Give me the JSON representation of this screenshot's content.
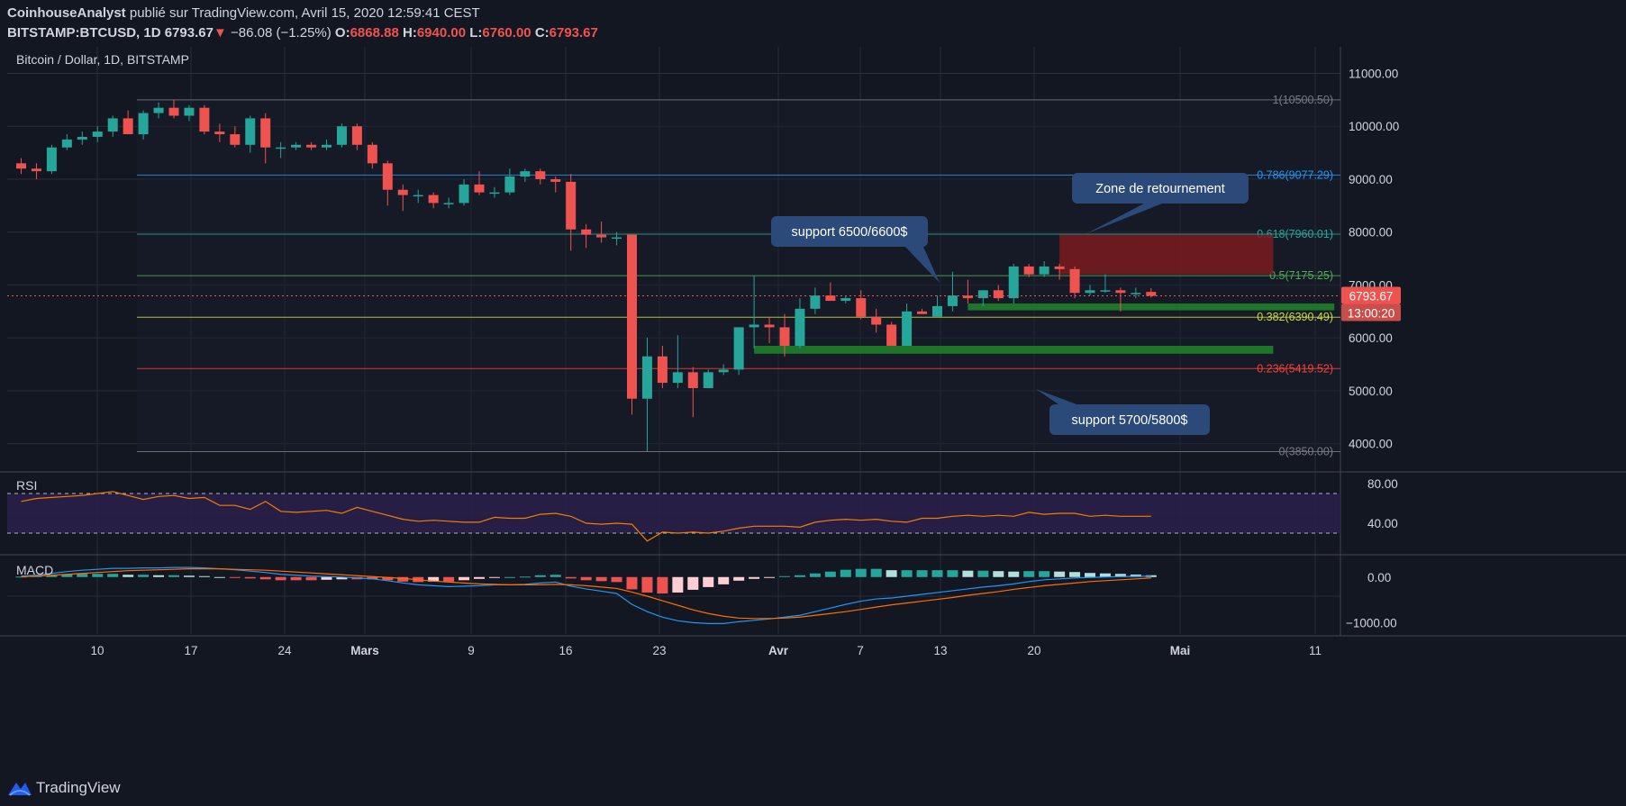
{
  "header": {
    "author": "CoinhouseAnalyst",
    "published_on": "publié sur TradingView.com, Avril 15, 2020 12:59:41 CEST",
    "symbol": "BITSTAMP:BTCUSD, 1D",
    "last": "6793.67",
    "change": "−86.08 (−1.25%)",
    "o_label": "O:",
    "o_value": "6868.88",
    "h_label": "H:",
    "h_value": "6940.00",
    "l_label": "L:",
    "l_value": "6760.00",
    "c_label": "C:",
    "c_value": "6793.67"
  },
  "colors": {
    "background": "#131722",
    "up": "#26a69a",
    "down": "#ef5350",
    "grid": "#2a2e39",
    "text": "#d1d4dc",
    "rsi_line": "#f57c00",
    "rsi_band": "#2a1f4a",
    "macd_line": "#2196f3",
    "signal_line": "#ff6d00",
    "zone": "#7a1c1f",
    "support_bar": "#1f7a2a",
    "callout": "#2b4a7a"
  },
  "chart_data": {
    "type": "candlestick",
    "title": "Bitcoin / Dollar, 1D, BITSTAMP",
    "ylim": [
      3500,
      11400
    ],
    "y_ticks": [
      "11000.00",
      "10000.00",
      "9000.00",
      "8000.00",
      "7000.00",
      "6000.00",
      "5000.00",
      "4000.00"
    ],
    "x_ticks": [
      "10",
      "17",
      "24",
      "Mars",
      "9",
      "16",
      "23",
      "Avr",
      "7",
      "13",
      "20",
      "Mai",
      "11"
    ],
    "last_price_label": "6793.67",
    "countdown_label": "13:00:20",
    "ohlc": [
      [
        9300,
        9400,
        9100,
        9200
      ],
      [
        9200,
        9300,
        9000,
        9150
      ],
      [
        9150,
        9650,
        9100,
        9600
      ],
      [
        9600,
        9850,
        9550,
        9750
      ],
      [
        9750,
        9900,
        9650,
        9800
      ],
      [
        9800,
        10000,
        9700,
        9900
      ],
      [
        9900,
        10200,
        9800,
        10150
      ],
      [
        10150,
        10300,
        9850,
        9850
      ],
      [
        9850,
        10300,
        9750,
        10250
      ],
      [
        10250,
        10450,
        10150,
        10350
      ],
      [
        10350,
        10500,
        10150,
        10200
      ],
      [
        10200,
        10400,
        10100,
        10350
      ],
      [
        10350,
        10400,
        9850,
        9900
      ],
      [
        9900,
        10050,
        9700,
        9850
      ],
      [
        9850,
        10000,
        9600,
        9650
      ],
      [
        9650,
        10200,
        9500,
        10150
      ],
      [
        10150,
        10250,
        9300,
        9600
      ],
      [
        9600,
        9700,
        9400,
        9600
      ],
      [
        9600,
        9700,
        9550,
        9650
      ],
      [
        9650,
        9700,
        9550,
        9600
      ],
      [
        9600,
        9750,
        9550,
        9650
      ],
      [
        9650,
        10050,
        9600,
        10000
      ],
      [
        10000,
        10050,
        9550,
        9650
      ],
      [
        9650,
        9700,
        9200,
        9300
      ],
      [
        9300,
        9350,
        8500,
        8800
      ],
      [
        8800,
        8900,
        8400,
        8700
      ],
      [
        8700,
        8800,
        8550,
        8700
      ],
      [
        8700,
        8750,
        8450,
        8550
      ],
      [
        8550,
        8650,
        8450,
        8550
      ],
      [
        8550,
        9000,
        8500,
        8900
      ],
      [
        8900,
        9150,
        8700,
        8750
      ],
      [
        8750,
        8850,
        8650,
        8750
      ],
      [
        8750,
        9200,
        8700,
        9050
      ],
      [
        9050,
        9200,
        8950,
        9150
      ],
      [
        9150,
        9200,
        8900,
        9000
      ],
      [
        9000,
        9050,
        8750,
        8950
      ],
      [
        8950,
        9100,
        7650,
        8050
      ],
      [
        8050,
        8150,
        7700,
        7950
      ],
      [
        7950,
        8200,
        7800,
        7900
      ],
      [
        7900,
        8000,
        7750,
        7900
      ],
      [
        7950,
        7950,
        4550,
        4850
      ],
      [
        4850,
        6000,
        3850,
        5650
      ],
      [
        5650,
        5850,
        5050,
        5150
      ],
      [
        5150,
        6050,
        5050,
        5350
      ],
      [
        5350,
        5450,
        4500,
        5050
      ],
      [
        5050,
        5400,
        5050,
        5350
      ],
      [
        5350,
        5500,
        5300,
        5400
      ],
      [
        5400,
        6150,
        5300,
        6200
      ],
      [
        6200,
        7180,
        5800,
        6250
      ],
      [
        6250,
        6400,
        5900,
        6200
      ],
      [
        6200,
        6450,
        5650,
        5850
      ],
      [
        5850,
        6750,
        5800,
        6550
      ],
      [
        6550,
        6950,
        6450,
        6800
      ],
      [
        6800,
        7050,
        6700,
        6700
      ],
      [
        6700,
        6800,
        6650,
        6750
      ],
      [
        6750,
        6900,
        6350,
        6400
      ],
      [
        6400,
        6550,
        6100,
        6250
      ],
      [
        6250,
        6300,
        5850,
        5850
      ],
      [
        5850,
        6650,
        5850,
        6500
      ],
      [
        6500,
        6550,
        6450,
        6450
      ],
      [
        6400,
        6800,
        6400,
        6600
      ],
      [
        6600,
        7250,
        6500,
        6800
      ],
      [
        6800,
        7100,
        6650,
        6750
      ],
      [
        6750,
        6900,
        6600,
        6900
      ],
      [
        6900,
        7000,
        6700,
        6750
      ],
      [
        6750,
        7400,
        6650,
        7350
      ],
      [
        7350,
        7400,
        7150,
        7200
      ],
      [
        7200,
        7450,
        7150,
        7350
      ],
      [
        7350,
        7400,
        7100,
        7300
      ],
      [
        7300,
        7350,
        6750,
        6850
      ],
      [
        6850,
        7000,
        6800,
        6900
      ],
      [
        6900,
        7200,
        6850,
        6900
      ],
      [
        6900,
        6950,
        6500,
        6850
      ],
      [
        6850,
        6950,
        6750,
        6850
      ],
      [
        6868.88,
        6940,
        6760,
        6793.67
      ]
    ],
    "fib_levels": [
      {
        "label": "1(10500.50)",
        "value": 10500.5,
        "color": "#787b86"
      },
      {
        "label": "0.786(9077.29)",
        "value": 9077.29,
        "color": "#2196f3"
      },
      {
        "label": "0.618(7960.01)",
        "value": 7960.01,
        "color": "#26a69a"
      },
      {
        "label": "0.5(7175.25)",
        "value": 7175.25,
        "color": "#4caf50"
      },
      {
        "label": "0.382(6390.49)",
        "value": 6390.49,
        "color": "#cddc39"
      },
      {
        "label": "0.236(5419.52)",
        "value": 5419.52,
        "color": "#f44336"
      },
      {
        "label": "0(3850.00)",
        "value": 3850,
        "color": "#787b86"
      }
    ],
    "zones": [
      {
        "type": "resistance",
        "from_index": 68,
        "to_index": 82,
        "low": 7200,
        "high": 7950
      },
      {
        "type": "support",
        "from_index": 62,
        "to_index": 86,
        "low": 6520,
        "high": 6650
      },
      {
        "type": "support",
        "from_index": 48,
        "to_index": 82,
        "low": 5700,
        "high": 5850
      }
    ],
    "annotations": [
      {
        "text": "Zone de retournement"
      },
      {
        "text": "support 6500/6600$"
      },
      {
        "text": "support 5700/5800$"
      }
    ],
    "rsi": {
      "label": "RSI",
      "ylim": [
        10,
        90
      ],
      "y_ticks": [
        "80.00",
        "40.00"
      ],
      "levels": [
        70,
        30
      ],
      "values": [
        62,
        65,
        66,
        67,
        68,
        70,
        72,
        68,
        64,
        67,
        68,
        65,
        66,
        58,
        58,
        54,
        62,
        52,
        51,
        52,
        53,
        50,
        56,
        52,
        48,
        44,
        42,
        43,
        42,
        41,
        41,
        46,
        45,
        45,
        49,
        50,
        47,
        40,
        39,
        40,
        39,
        22,
        31,
        30,
        31,
        30,
        32,
        35,
        37,
        37,
        37,
        36,
        41,
        43,
        44,
        43,
        44,
        42,
        41,
        45,
        45,
        47,
        48,
        47,
        48,
        47,
        51,
        49,
        50,
        50,
        47,
        48,
        47,
        47,
        47
      ]
    },
    "macd": {
      "label": "MACD",
      "ylim": [
        -1250,
        450
      ],
      "y_ticks": [
        "0.00",
        "−1000.00"
      ],
      "macd_values": [
        20,
        40,
        80,
        120,
        150,
        170,
        190,
        190,
        200,
        200,
        210,
        210,
        200,
        180,
        160,
        130,
        100,
        60,
        40,
        20,
        10,
        0,
        -20,
        -40,
        -80,
        -130,
        -170,
        -190,
        -210,
        -200,
        -190,
        -170,
        -170,
        -160,
        -130,
        -110,
        -200,
        -260,
        -310,
        -360,
        -600,
        -760,
        -880,
        -960,
        -1000,
        -1020,
        -1020,
        -980,
        -950,
        -920,
        -880,
        -840,
        -760,
        -680,
        -600,
        -530,
        -480,
        -460,
        -420,
        -380,
        -340,
        -300,
        -260,
        -220,
        -190,
        -150,
        -100,
        -60,
        -40,
        -20,
        -10,
        0,
        10,
        15,
        20
      ],
      "signal_values": [
        10,
        20,
        40,
        60,
        80,
        100,
        120,
        140,
        150,
        160,
        170,
        180,
        180,
        180,
        170,
        160,
        150,
        130,
        110,
        90,
        70,
        50,
        30,
        10,
        -10,
        -30,
        -60,
        -90,
        -110,
        -130,
        -150,
        -160,
        -170,
        -170,
        -170,
        -160,
        -170,
        -190,
        -220,
        -250,
        -330,
        -420,
        -520,
        -620,
        -720,
        -800,
        -860,
        -900,
        -910,
        -910,
        -900,
        -880,
        -840,
        -800,
        -760,
        -710,
        -660,
        -610,
        -570,
        -530,
        -490,
        -450,
        -400,
        -360,
        -320,
        -270,
        -230,
        -190,
        -160,
        -130,
        -100,
        -80,
        -60,
        -40,
        -20
      ]
    }
  },
  "footer": {
    "brand": "TradingView"
  }
}
